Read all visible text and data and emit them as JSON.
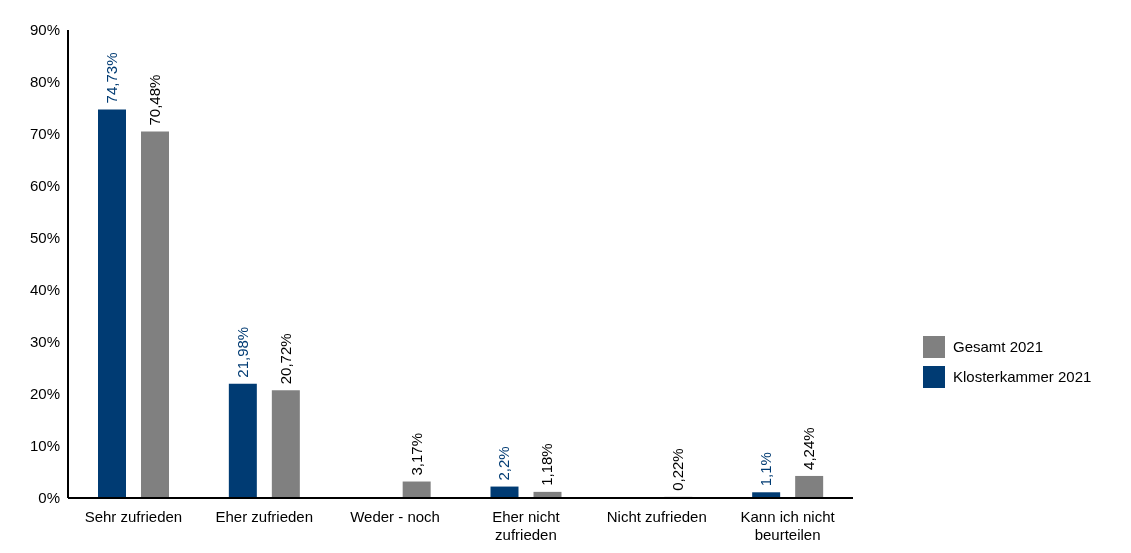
{
  "chart_data": {
    "type": "bar",
    "categories": [
      "Sehr zufrieden",
      "Eher zufrieden",
      "Weder - noch",
      "Eher nicht zufrieden",
      "Nicht zufrieden",
      "Kann ich nicht beurteilen"
    ],
    "series": [
      {
        "name": "Klosterkammer 2021",
        "color": "#003b73",
        "values": [
          74.73,
          21.98,
          null,
          2.2,
          null,
          1.1
        ],
        "value_labels": [
          "74,73%",
          "21,98%",
          null,
          "2,2%",
          null,
          "1,1%"
        ]
      },
      {
        "name": "Gesamt 2021",
        "color": "#808080",
        "values": [
          70.48,
          20.72,
          3.17,
          1.18,
          0.22,
          4.24
        ],
        "value_labels": [
          "70,48%",
          "20,72%",
          "3,17%",
          "1,18%",
          "0,22%",
          "4,24%"
        ]
      }
    ],
    "ylim": [
      0,
      90
    ],
    "yticks": [
      {
        "value": 0,
        "label": "0%"
      },
      {
        "value": 10,
        "label": "10%"
      },
      {
        "value": 20,
        "label": "20%"
      },
      {
        "value": 30,
        "label": "30%"
      },
      {
        "value": 40,
        "label": "40%"
      },
      {
        "value": 50,
        "label": "50%"
      },
      {
        "value": 60,
        "label": "60%"
      },
      {
        "value": 70,
        "label": "70%"
      },
      {
        "value": 80,
        "label": "80%"
      },
      {
        "value": 90,
        "label": "90%"
      }
    ],
    "grid": false,
    "legend": "right"
  }
}
